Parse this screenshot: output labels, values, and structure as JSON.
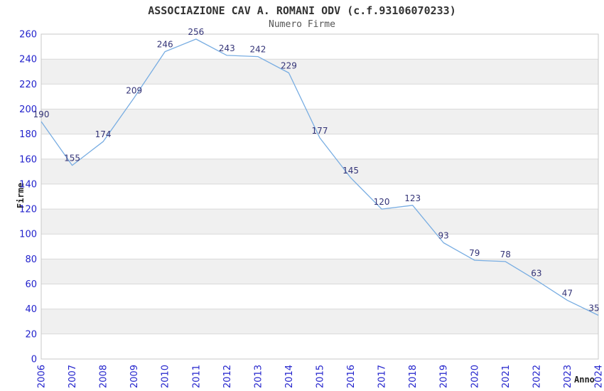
{
  "chart_data": {
    "type": "line",
    "title": "ASSOCIAZIONE CAV A. ROMANI ODV (c.f.93106070233)",
    "subtitle": "Numero Firme",
    "xlabel": "Anno",
    "ylabel": "Firme",
    "categories": [
      "2006",
      "2007",
      "2008",
      "2009",
      "2010",
      "2011",
      "2012",
      "2013",
      "2014",
      "2015",
      "2016",
      "2017",
      "2018",
      "2019",
      "2020",
      "2021",
      "2022",
      "2023",
      "2024"
    ],
    "values": [
      190,
      155,
      174,
      209,
      246,
      256,
      243,
      242,
      229,
      177,
      145,
      120,
      123,
      93,
      79,
      78,
      63,
      47,
      35
    ],
    "ylim": [
      0,
      260
    ],
    "ytick_step": 20,
    "grid": "horizontal-bands-alternating",
    "legend": "none",
    "data_labels": "above-points",
    "colors": {
      "line": "#78ade2",
      "tick_labels": "#2222cc",
      "data_labels": "#333377",
      "band": "#f0f0f0",
      "gridline": "#d9d9d9",
      "border": "#c8c8c8",
      "title": "#333333",
      "subtitle": "#555555",
      "background": "#ffffff"
    }
  }
}
